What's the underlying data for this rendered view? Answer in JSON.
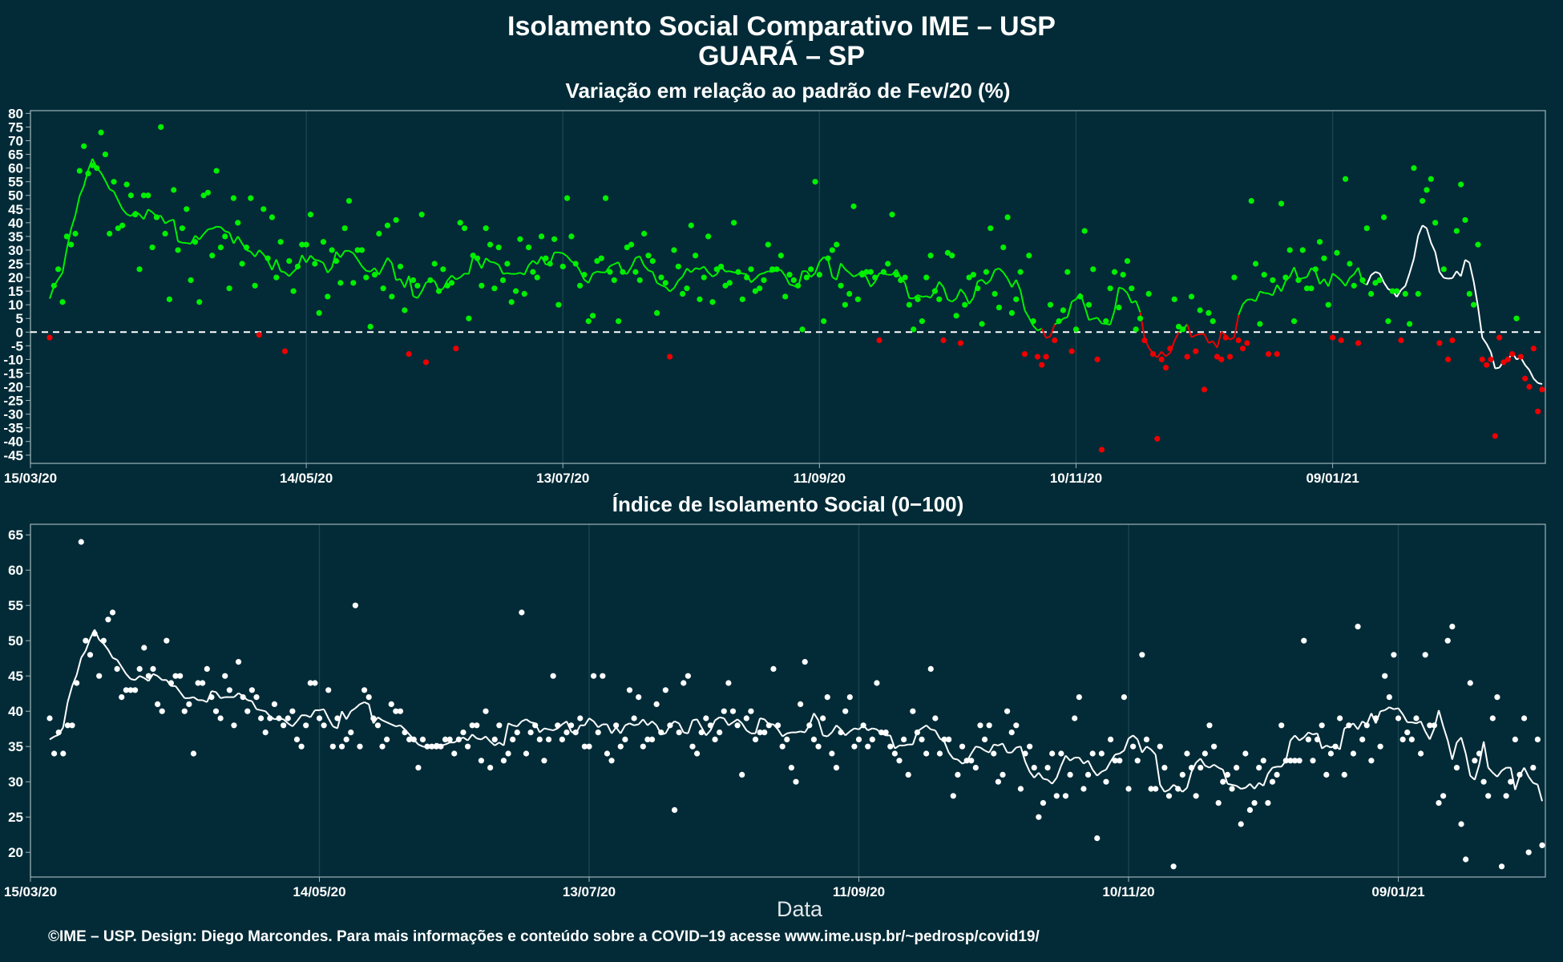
{
  "title_line1": "Isolamento Social Comparativo IME – USP",
  "title_line2": "GUARÁ – SP",
  "xlabel": "Data",
  "footer": "©IME – USP. Design: Diego Marcondes. Para mais informações e conteúdo sobre a COVID−19 acesse www.ime.usp.br/~pedrosp/covid19/",
  "colors": {
    "background": "#022b37",
    "green": "#00f000",
    "red": "#ee0000",
    "white": "#ffffff",
    "grid": "#1c4552",
    "axis": "#9fb3b9"
  },
  "chart_data": [
    {
      "type": "scatter",
      "title": "Variação em relação ao padrão de Fev/20 (%)",
      "xlabel": "",
      "ylabel": "",
      "x_range": [
        "2020-03-15",
        "2021-02-26"
      ],
      "ylim": [
        -48,
        81
      ],
      "yticks": [
        -45,
        -40,
        -35,
        -30,
        -25,
        -20,
        -15,
        -10,
        -5,
        0,
        5,
        10,
        15,
        20,
        25,
        30,
        35,
        40,
        45,
        50,
        55,
        60,
        65,
        70,
        75,
        80
      ],
      "xticks": [
        "15/03/20",
        "14/05/20",
        "13/07/20",
        "11/09/20",
        "10/11/20",
        "09/01/21"
      ],
      "reference_line": 0,
      "grid": true,
      "series": [
        {
          "values": [
            -2,
            17,
            23,
            11,
            35,
            32,
            36,
            59,
            68,
            58,
            61,
            60,
            73,
            65,
            36,
            55,
            38,
            39,
            54,
            50,
            43,
            23,
            50,
            50,
            31,
            42,
            75,
            36,
            12,
            52,
            30,
            38,
            45,
            19,
            33,
            11,
            50,
            51,
            28,
            59,
            31,
            35,
            16,
            49,
            40,
            25,
            31,
            49,
            17,
            -1,
            45,
            27,
            42,
            20,
            33,
            -7,
            26,
            15,
            24,
            32,
            32,
            43,
            25,
            7,
            33,
            13,
            30,
            26,
            18,
            38,
            48,
            18,
            30,
            30,
            20,
            2,
            21,
            36,
            16,
            39,
            13,
            41,
            24,
            8,
            -8,
            19,
            17,
            43,
            -11,
            19,
            25,
            15,
            23,
            17,
            18,
            -6,
            40,
            38,
            5,
            28,
            27,
            17,
            38,
            32,
            16,
            31,
            19,
            25,
            11,
            15,
            34,
            14,
            31,
            22,
            20,
            35,
            27,
            25,
            34,
            10,
            24,
            49,
            35,
            25,
            17,
            21,
            4,
            6,
            26,
            27,
            49,
            22,
            19,
            4,
            22,
            31,
            32,
            22,
            19,
            36,
            28,
            26,
            7,
            20,
            18,
            -9,
            30,
            24,
            14,
            16,
            39,
            28,
            12,
            20,
            35,
            11,
            23,
            24,
            17,
            18,
            40,
            22,
            12,
            20,
            23,
            15,
            16,
            19,
            32,
            23,
            23,
            28,
            13,
            21,
            19,
            17,
            1,
            20,
            23,
            55,
            21,
            4,
            27,
            30,
            32,
            17,
            10,
            14,
            46,
            12,
            21,
            22,
            22,
            20,
            -3,
            22,
            25,
            43,
            21,
            19,
            20,
            10,
            1,
            12,
            4,
            20,
            28,
            15,
            12,
            -3,
            29,
            28,
            6,
            -4,
            10,
            20,
            21,
            16,
            3,
            22,
            38,
            14,
            9,
            31,
            42,
            7,
            12,
            22,
            -8,
            28,
            4,
            -9,
            -12,
            -9,
            10,
            -3,
            4,
            8,
            22,
            -7,
            1,
            13,
            37,
            10,
            23,
            -10,
            -43,
            4,
            16,
            22,
            9,
            21,
            26,
            16,
            1,
            5,
            -3,
            14,
            -8,
            -39,
            -10,
            -13,
            -6,
            12,
            2,
            1,
            -9,
            13,
            -7,
            8,
            -21,
            7,
            4,
            -9,
            -10,
            -2,
            -9,
            20,
            -3,
            -6,
            -4,
            48,
            25,
            3,
            21,
            -8,
            19,
            -8,
            47,
            20,
            30,
            4,
            19,
            30,
            16,
            16,
            23,
            33,
            27,
            10,
            -2,
            29,
            -3,
            56,
            25,
            17,
            -4,
            19,
            38,
            14,
            18,
            19,
            42,
            4,
            15,
            15,
            -3,
            14,
            3,
            60,
            14,
            48,
            52,
            56,
            40,
            -4,
            23,
            -10,
            -3,
            37,
            54,
            41,
            14,
            10,
            32,
            -10,
            -12,
            -10,
            -38,
            -2,
            -11,
            -10,
            -8,
            5,
            -9,
            -17,
            -20,
            -6,
            -29,
            -21
          ],
          "name": ""
        }
      ]
    },
    {
      "type": "scatter",
      "title": "Índice de Isolamento Social (0−100)",
      "xlabel": "Data",
      "ylabel": "",
      "x_range": [
        "2020-03-15",
        "2021-02-26"
      ],
      "ylim": [
        16.5,
        66.5
      ],
      "yticks": [
        20,
        25,
        30,
        35,
        40,
        45,
        50,
        55,
        60,
        65
      ],
      "xticks": [
        "15/03/20",
        "14/05/20",
        "13/07/20",
        "11/09/20",
        "10/11/20",
        "09/01/21"
      ],
      "grid": true,
      "series": [
        {
          "values": [
            39,
            34,
            37,
            34,
            38,
            38,
            44,
            64,
            50,
            48,
            51,
            45,
            50,
            53,
            54,
            46,
            42,
            43,
            43,
            43,
            46,
            49,
            45,
            46,
            41,
            40,
            50,
            44,
            45,
            45,
            40,
            41,
            34,
            44,
            44,
            46,
            42,
            40,
            39,
            45,
            43,
            38,
            47,
            42,
            40,
            43,
            42,
            39,
            37,
            39,
            41,
            39,
            38,
            39,
            40,
            36,
            35,
            38,
            44,
            44,
            39,
            38,
            43,
            35,
            39,
            35,
            36,
            37,
            55,
            35,
            43,
            42,
            39,
            38,
            35,
            36,
            41,
            40,
            40,
            37,
            36,
            36,
            32,
            36,
            35,
            35,
            35,
            35,
            36,
            36,
            34,
            36,
            37,
            35,
            38,
            38,
            33,
            40,
            32,
            36,
            38,
            33,
            34,
            36,
            37,
            54,
            34,
            37,
            38,
            36,
            33,
            36,
            45,
            38,
            36,
            37,
            38,
            37,
            39,
            35,
            35,
            45,
            37,
            45,
            34,
            33,
            38,
            35,
            36,
            43,
            39,
            42,
            35,
            36,
            36,
            41,
            37,
            43,
            38,
            26,
            37,
            44,
            45,
            35,
            34,
            37,
            39,
            38,
            36,
            37,
            40,
            44,
            40,
            38,
            31,
            39,
            40,
            36,
            37,
            37,
            38,
            46,
            38,
            35,
            36,
            32,
            30,
            41,
            47,
            38,
            36,
            35,
            39,
            42,
            34,
            32,
            37,
            40,
            42,
            35,
            36,
            38,
            35,
            36,
            44,
            37,
            37,
            35,
            34,
            33,
            36,
            31,
            40,
            37,
            36,
            34,
            46,
            39,
            34,
            36,
            36,
            28,
            31,
            35,
            33,
            33,
            32,
            38,
            36,
            38,
            34,
            30,
            31,
            40,
            37,
            38,
            29,
            34,
            35,
            32,
            25,
            27,
            32,
            34,
            28,
            34,
            28,
            31,
            39,
            42,
            29,
            31,
            34,
            22,
            34,
            30,
            36,
            33,
            33,
            42,
            29,
            35,
            33,
            48,
            36,
            29,
            29,
            35,
            32,
            28,
            18,
            29,
            31,
            34,
            32,
            28,
            32,
            34,
            38,
            35,
            27,
            30,
            31,
            29,
            32,
            24,
            34,
            26,
            27,
            32,
            33,
            27,
            30,
            31,
            38,
            33,
            33,
            33,
            33,
            50,
            36,
            33,
            36,
            38,
            31,
            34,
            35,
            39,
            31,
            38,
            34,
            52,
            36,
            38,
            33,
            39,
            35,
            45,
            42,
            48,
            39,
            36,
            37,
            36,
            39,
            34,
            48,
            38,
            38,
            27,
            28,
            50,
            52,
            32,
            24,
            19,
            44,
            33,
            34,
            30,
            28,
            39,
            42,
            18,
            28,
            30,
            36,
            31,
            39,
            20,
            32,
            36,
            21
          ],
          "name": ""
        }
      ]
    }
  ]
}
